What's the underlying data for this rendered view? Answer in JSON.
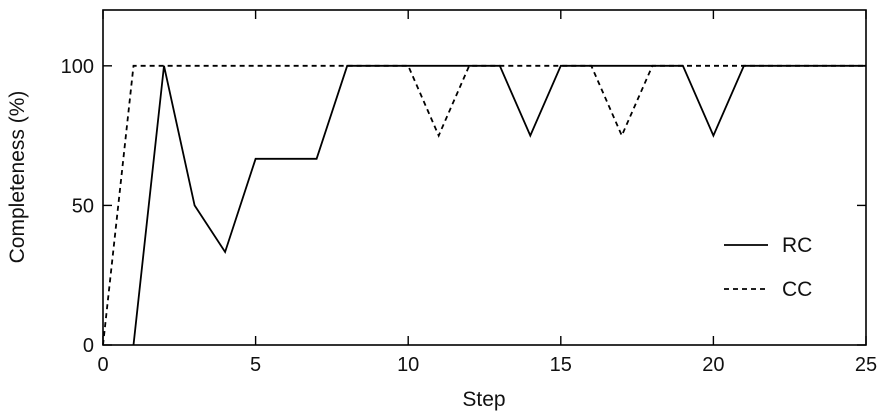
{
  "chart_data": {
    "type": "line",
    "title": "",
    "xlabel": "Step",
    "ylabel": "Completeness (%)",
    "xlim": [
      0,
      25
    ],
    "ylim": [
      0,
      120
    ],
    "xticks": [
      0,
      5,
      10,
      15,
      20,
      25
    ],
    "yticks": [
      0,
      50,
      100
    ],
    "grid": false,
    "legend_position": "bottom-right",
    "series": [
      {
        "name": "RC",
        "line_style": "solid",
        "color": "#000000",
        "x": [
          1,
          2,
          3,
          4,
          5,
          6,
          7,
          8,
          9,
          10,
          11,
          12,
          13,
          14,
          15,
          16,
          17,
          18,
          19,
          20,
          21,
          22,
          23,
          24,
          25
        ],
        "y": [
          0,
          100,
          50,
          33.3,
          66.7,
          66.7,
          66.7,
          100,
          100,
          100,
          100,
          100,
          100,
          75,
          100,
          100,
          100,
          100,
          100,
          75,
          100,
          100,
          100,
          100,
          100
        ]
      },
      {
        "name": "CC",
        "line_style": "dashed",
        "color": "#000000",
        "x": [
          0,
          1,
          2,
          3,
          4,
          5,
          6,
          7,
          8,
          9,
          10,
          11,
          12,
          13,
          14,
          15,
          16,
          17,
          18,
          19,
          20,
          21,
          22,
          23,
          24,
          25
        ],
        "y": [
          0,
          100,
          100,
          100,
          100,
          100,
          100,
          100,
          100,
          100,
          100,
          75,
          100,
          100,
          100,
          100,
          100,
          75,
          100,
          100,
          100,
          100,
          100,
          100,
          100,
          100
        ]
      }
    ]
  }
}
